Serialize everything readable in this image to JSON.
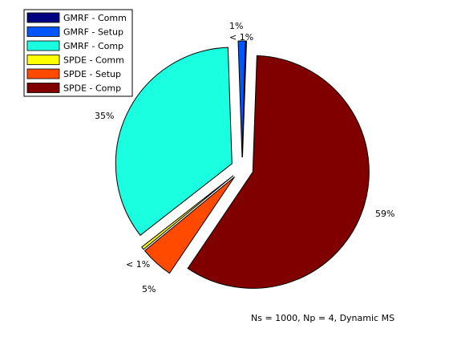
{
  "chart_data": {
    "type": "pie",
    "annotation": "Ns = 1000, Np = 4, Dynamic MS",
    "legend_placement": "top-left",
    "slices": [
      {
        "name": "GMRF - Comm",
        "value": 0.1,
        "label": "",
        "color": "#000080",
        "exploded": true
      },
      {
        "name": "GMRF - Setup",
        "value": 1.0,
        "label": "1%",
        "color": "#0055ff",
        "exploded": true
      },
      {
        "name": "GMRF - Comp",
        "value": 35.0,
        "label": "35%",
        "color": "#1affe0",
        "exploded": true
      },
      {
        "name": "SPDE - Comm",
        "value": 0.4,
        "label": "< 1%",
        "color": "#ffff00",
        "exploded": true
      },
      {
        "name": "SPDE - Setup",
        "value": 4.6,
        "label": "5%",
        "color": "#ff4a00",
        "exploded": true
      },
      {
        "name": "SPDE - Comp",
        "value": 58.9,
        "label": "59%",
        "color": "#800000",
        "exploded": true
      }
    ],
    "extra_labels": [
      "< 1%"
    ]
  }
}
